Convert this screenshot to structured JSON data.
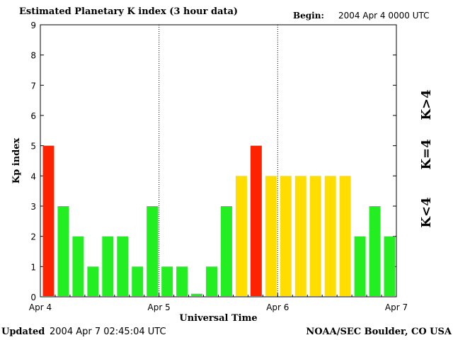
{
  "header": {
    "title": "Estimated Planetary K index (3 hour data)",
    "begin_label": "Begin:",
    "begin_value": "2004 Apr 4 0000 UTC"
  },
  "footer": {
    "updated_label": "Updated",
    "updated_value": "2004 Apr  7 02:45:04 UTC",
    "source": "NOAA/SEC Boulder, CO USA"
  },
  "colors": {
    "low": "#22ee22",
    "equal": "#ffdd00",
    "high": "#ff2200"
  },
  "chart_data": {
    "type": "bar",
    "xlabel": "Universal Time",
    "ylabel": "Kp index",
    "ylim": [
      0,
      9
    ],
    "yticks": [
      "0",
      "1",
      "2",
      "3",
      "4",
      "5",
      "6",
      "7",
      "8",
      "9"
    ],
    "xticks": [
      "Apr 4",
      "Apr 5",
      "Apr 6",
      "Apr 7"
    ],
    "day_dividers": [
      "Apr 5",
      "Apr 6"
    ],
    "bars_per_day": 8,
    "values": [
      5,
      3,
      2,
      1,
      2,
      2,
      1,
      3,
      1,
      1,
      0.1,
      1,
      3,
      4,
      5,
      4,
      4,
      4,
      4,
      4,
      4,
      2,
      3,
      2
    ],
    "legend": [
      {
        "label": "K<4",
        "color_key": "low"
      },
      {
        "label": "K=4",
        "color_key": "equal"
      },
      {
        "label": "K>4",
        "color_key": "high"
      }
    ],
    "legend_placement": "right (vertical)"
  }
}
